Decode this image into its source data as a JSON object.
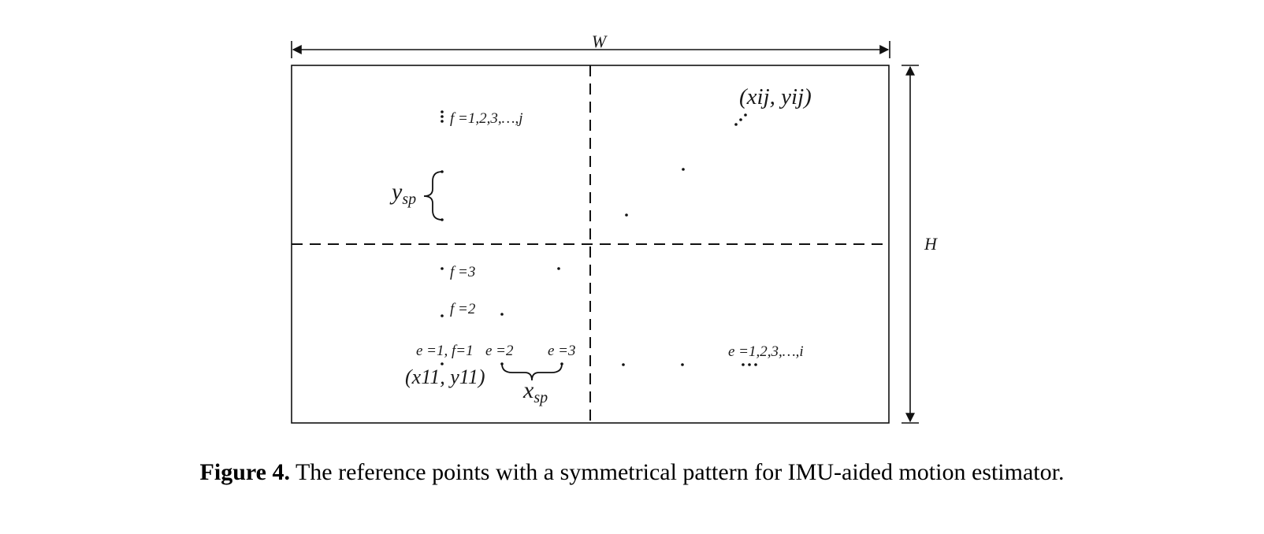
{
  "labels": {
    "width": "W",
    "height": "H",
    "f_range": "f =1,2,3,…,j",
    "e_range": "e =1,2,3,…,i",
    "y_sp_main": "y",
    "y_sp_sub": "sp",
    "x_sp_main": "x",
    "x_sp_sub": "sp",
    "f3": "f =3",
    "f2": "f =2",
    "e1f1": "e =1, f=1",
    "e2": "e =2",
    "e3": "e =3",
    "p11": "(x11, y11)",
    "pij": "(xij, yij)"
  },
  "caption": {
    "label": "Figure 4.",
    "text": "The reference points with a symmetrical pattern for IMU-aided motion estimator."
  }
}
